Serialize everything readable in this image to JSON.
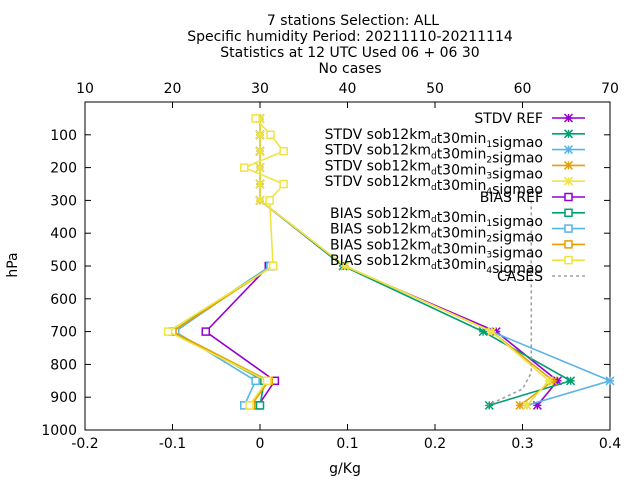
{
  "title_lines": [
    "7 stations Selection: ALL",
    "Specific humidity  Period: 20211110-20211114",
    "Statistics at 12 UTC  Used 06 + 06 30",
    "No cases"
  ],
  "colors": {
    "purple": "#9400d3",
    "green": "#009e73",
    "skyblue": "#56b4e9",
    "orange": "#e69f00",
    "yellow": "#f0e442",
    "gray": "#a0a0a0"
  },
  "chart_data": {
    "type": "line",
    "xlabel": "g/Kg",
    "ylabel": "hPa",
    "xlim": [
      -0.2,
      0.4
    ],
    "ylim": [
      1000,
      0
    ],
    "x2lim": [
      10,
      70
    ],
    "x_ticks": [
      "-0.2",
      "-0.1",
      "0",
      "0.1",
      "0.2",
      "0.3",
      "0.4"
    ],
    "x2_ticks": [
      "10",
      "20",
      "30",
      "40",
      "50",
      "60",
      "70"
    ],
    "y_ticks": [
      "100",
      "200",
      "300",
      "400",
      "500",
      "600",
      "700",
      "800",
      "900",
      "1000"
    ],
    "levels": [
      50,
      100,
      150,
      200,
      250,
      300,
      500,
      700,
      850,
      925
    ],
    "legend_position": "top-right",
    "series": [
      {
        "name": "STDV REF",
        "marker": "star",
        "color": "purple",
        "levels": [
          50,
          100,
          150,
          200,
          250,
          300,
          500,
          700,
          850,
          925
        ],
        "values": [
          0.0,
          0.0,
          0.0,
          0.0,
          0.0,
          0.0,
          0.095,
          0.27,
          0.34,
          0.317
        ]
      },
      {
        "name": "STDV sob12km_d t30min_1 sigmao",
        "marker": "star",
        "color": "green",
        "levels": [
          50,
          100,
          150,
          200,
          250,
          300,
          500,
          700,
          850,
          925
        ],
        "values": [
          0.0,
          0.0,
          0.0,
          0.0,
          0.0,
          0.0,
          0.095,
          0.255,
          0.355,
          0.262
        ]
      },
      {
        "name": "STDV sob12km_d t30min_2 sigmao",
        "marker": "star",
        "color": "skyblue",
        "levels": [
          50,
          100,
          150,
          200,
          250,
          300,
          500,
          700,
          850,
          925
        ],
        "values": [
          0.0,
          0.0,
          0.0,
          0.0,
          0.0,
          0.0,
          0.097,
          0.265,
          0.4,
          0.305
        ]
      },
      {
        "name": "STDV sob12km_d t30min_3 sigmao",
        "marker": "star",
        "color": "orange",
        "levels": [
          50,
          100,
          150,
          200,
          250,
          300,
          500,
          700,
          850,
          925
        ],
        "values": [
          0.0,
          0.0,
          0.0,
          0.0,
          0.0,
          0.0,
          0.097,
          0.265,
          0.335,
          0.297
        ]
      },
      {
        "name": "STDV sob12km_d t30min_4 sigmao",
        "marker": "star",
        "color": "yellow",
        "levels": [
          50,
          100,
          150,
          200,
          250,
          300,
          500,
          700,
          850,
          925
        ],
        "values": [
          0.0,
          0.0,
          0.0,
          0.0,
          0.0,
          0.0,
          0.097,
          0.265,
          0.33,
          0.305
        ]
      },
      {
        "name": "BIAS REF",
        "marker": "square",
        "color": "purple",
        "levels": [
          50,
          100,
          150,
          200,
          250,
          300,
          500,
          700,
          850,
          925
        ],
        "values": [
          null,
          null,
          null,
          null,
          null,
          null,
          0.01,
          -0.062,
          0.017,
          -0.002
        ]
      },
      {
        "name": "BIAS sob12km_d t30min_1 sigmao",
        "marker": "square",
        "color": "green",
        "levels": [
          50,
          100,
          150,
          200,
          250,
          300,
          500,
          700,
          850,
          925
        ],
        "values": [
          null,
          null,
          null,
          null,
          null,
          null,
          0.012,
          -0.1,
          0.005,
          0.0
        ]
      },
      {
        "name": "BIAS sob12km_d t30min_2 sigmao",
        "marker": "square",
        "color": "skyblue",
        "levels": [
          50,
          100,
          150,
          200,
          250,
          300,
          500,
          700,
          850,
          925
        ],
        "values": [
          null,
          null,
          null,
          null,
          null,
          null,
          0.012,
          -0.097,
          -0.005,
          -0.018
        ]
      },
      {
        "name": "BIAS sob12km_d t30min_3 sigmao",
        "marker": "square",
        "color": "orange",
        "levels": [
          50,
          100,
          150,
          200,
          250,
          300,
          500,
          700,
          850,
          925
        ],
        "values": [
          null,
          null,
          null,
          null,
          null,
          null,
          0.015,
          -0.1,
          0.01,
          -0.01
        ]
      },
      {
        "name": "BIAS sob12km_d t30min_4 sigmao",
        "marker": "square",
        "color": "yellow",
        "levels": [
          50,
          100,
          150,
          200,
          250,
          300,
          500,
          700,
          850,
          925
        ],
        "values": [
          -0.005,
          0.012,
          0.027,
          -0.018,
          0.027,
          0.011,
          0.015,
          -0.105,
          0.008,
          -0.012
        ]
      },
      {
        "name": "CASES",
        "marker": "none",
        "color": "gray",
        "dashed": true,
        "levels": [
          300,
          400,
          500,
          600,
          700,
          775,
          800,
          825,
          850,
          875,
          900,
          925
        ],
        "values": [
          61.0,
          61.0,
          61.0,
          61.0,
          61.0,
          61.0,
          61.0,
          61.0,
          60.5,
          60.0,
          58.0,
          56.0
        ]
      }
    ],
    "legend_rows": [
      {
        "text": "STDV REF",
        "sub": null
      },
      {
        "text": "STDV sob12km_d t30min_1 sigmao",
        "sub": "1"
      },
      {
        "text": "STDV sob12km_d t30min_2 sigmao",
        "sub": "2"
      },
      {
        "text": "STDV sob12km_d t30min_3 sigmao",
        "sub": "3"
      },
      {
        "text": "STDV sob12km_d t30min_4 sigmao",
        "sub": "4"
      },
      {
        "text": "BIAS REF",
        "sub": null
      },
      {
        "text": "BIAS sob12km_d t30min_1 sigmao",
        "sub": "1"
      },
      {
        "text": "BIAS sob12km_d t30min_2 sigmao",
        "sub": "2"
      },
      {
        "text": "BIAS sob12km_d t30min_3 sigmao",
        "sub": "3"
      },
      {
        "text": "BIAS sob12km_d t30min_4 sigmao",
        "sub": "4"
      },
      {
        "text": "CASES",
        "sub": null
      }
    ]
  }
}
